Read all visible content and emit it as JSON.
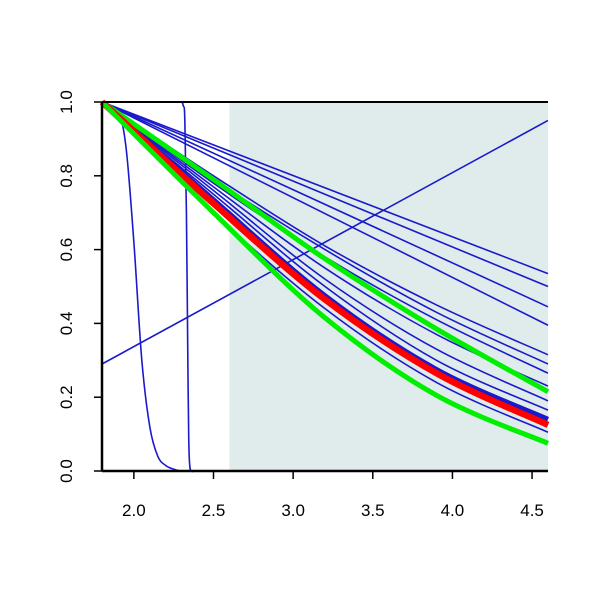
{
  "chart_data": {
    "type": "line",
    "title": "",
    "xlabel": "",
    "ylabel": "",
    "xlim": [
      1.8,
      4.6
    ],
    "ylim": [
      0.0,
      1.0
    ],
    "x_ticks": [
      "2.0",
      "2.5",
      "3.0",
      "3.5",
      "4.0",
      "4.5"
    ],
    "y_ticks": [
      "0.0",
      "0.2",
      "0.4",
      "0.6",
      "0.8",
      "1.0"
    ],
    "shaded_region": {
      "x_start": 2.6,
      "x_end": 4.6,
      "color": "#dfeceb"
    },
    "colors": {
      "blue": "#1a1acc",
      "red": "#ff0000",
      "green": "#00ee00",
      "frame": "#000000"
    },
    "series": [
      {
        "color": "blue",
        "width": 1.6,
        "x": [
          1.8,
          4.6
        ],
        "y": [
          0.29,
          0.95
        ]
      },
      {
        "color": "blue",
        "width": 1.6,
        "x": [
          1.8,
          1.9,
          1.95,
          2.0,
          2.05,
          2.1,
          2.15,
          2.2,
          2.25,
          2.3,
          2.4,
          2.6
        ],
        "y": [
          1.0,
          0.97,
          0.88,
          0.62,
          0.3,
          0.12,
          0.04,
          0.015,
          0.005,
          0.0,
          0.0,
          0.0
        ]
      },
      {
        "color": "blue",
        "width": 1.6,
        "x": [
          1.8,
          2.1,
          2.28,
          2.31,
          2.32,
          2.33,
          2.34,
          2.345,
          2.35,
          2.36,
          2.4,
          2.6
        ],
        "y": [
          1.0,
          1.0,
          1.0,
          0.99,
          0.95,
          0.7,
          0.25,
          0.08,
          0.02,
          0.0,
          0.0,
          0.0
        ]
      },
      {
        "color": "blue",
        "width": 1.6,
        "x": [
          1.8,
          4.6
        ],
        "y": [
          1.0,
          0.535
        ]
      },
      {
        "color": "blue",
        "width": 1.6,
        "x": [
          1.8,
          4.6
        ],
        "y": [
          1.0,
          0.5
        ]
      },
      {
        "color": "blue",
        "width": 1.6,
        "x": [
          1.8,
          4.6
        ],
        "y": [
          1.0,
          0.445
        ]
      },
      {
        "color": "blue",
        "width": 1.6,
        "x": [
          1.8,
          4.6
        ],
        "y": [
          1.0,
          0.395
        ]
      },
      {
        "color": "blue",
        "width": 1.6,
        "x": [
          1.8,
          2.5,
          3.2,
          3.9,
          4.6
        ],
        "y": [
          1.0,
          0.8,
          0.61,
          0.45,
          0.315
        ]
      },
      {
        "color": "blue",
        "width": 1.6,
        "x": [
          1.8,
          2.5,
          3.2,
          3.9,
          4.6
        ],
        "y": [
          1.0,
          0.79,
          0.6,
          0.43,
          0.29
        ]
      },
      {
        "color": "blue",
        "width": 1.6,
        "x": [
          1.8,
          2.5,
          3.2,
          3.9,
          4.6
        ],
        "y": [
          1.0,
          0.78,
          0.58,
          0.41,
          0.265
        ]
      },
      {
        "color": "blue",
        "width": 1.6,
        "x": [
          1.8,
          2.5,
          3.2,
          3.9,
          4.6
        ],
        "y": [
          1.0,
          0.77,
          0.55,
          0.37,
          0.23
        ]
      },
      {
        "color": "blue",
        "width": 1.6,
        "x": [
          1.8,
          2.5,
          3.2,
          3.9,
          4.6
        ],
        "y": [
          1.0,
          0.76,
          0.52,
          0.33,
          0.19
        ]
      },
      {
        "color": "blue",
        "width": 1.6,
        "x": [
          1.8,
          2.5,
          3.2,
          3.9,
          4.6
        ],
        "y": [
          1.0,
          0.75,
          0.5,
          0.3,
          0.165
        ]
      },
      {
        "color": "blue",
        "width": 1.6,
        "x": [
          1.8,
          2.5,
          3.2,
          3.9,
          4.6
        ],
        "y": [
          1.0,
          0.74,
          0.48,
          0.28,
          0.145
        ]
      },
      {
        "color": "blue",
        "width": 1.6,
        "x": [
          1.8,
          2.5,
          3.2,
          3.9,
          4.6
        ],
        "y": [
          1.0,
          0.72,
          0.46,
          0.26,
          0.125
        ]
      },
      {
        "color": "blue",
        "width": 1.6,
        "x": [
          1.8,
          2.5,
          3.2,
          3.9,
          4.6
        ],
        "y": [
          1.0,
          0.7,
          0.44,
          0.24,
          0.105
        ]
      },
      {
        "color": "blue",
        "width": 5.0,
        "x": [
          1.8,
          2.5,
          3.2,
          3.9,
          4.6
        ],
        "y": [
          1.0,
          0.735,
          0.475,
          0.275,
          0.14
        ]
      },
      {
        "color": "green",
        "width": 5.0,
        "x": [
          1.8,
          2.5,
          3.2,
          3.9,
          4.6
        ],
        "y": [
          1.0,
          0.79,
          0.575,
          0.385,
          0.215
        ]
      },
      {
        "color": "red",
        "width": 6.5,
        "x": [
          1.8,
          2.5,
          3.2,
          3.9,
          4.6
        ],
        "y": [
          1.0,
          0.725,
          0.465,
          0.265,
          0.125
        ]
      },
      {
        "color": "green",
        "width": 5.0,
        "x": [
          1.8,
          2.5,
          3.2,
          3.9,
          4.6
        ],
        "y": [
          1.0,
          0.7,
          0.415,
          0.205,
          0.075
        ]
      }
    ]
  }
}
